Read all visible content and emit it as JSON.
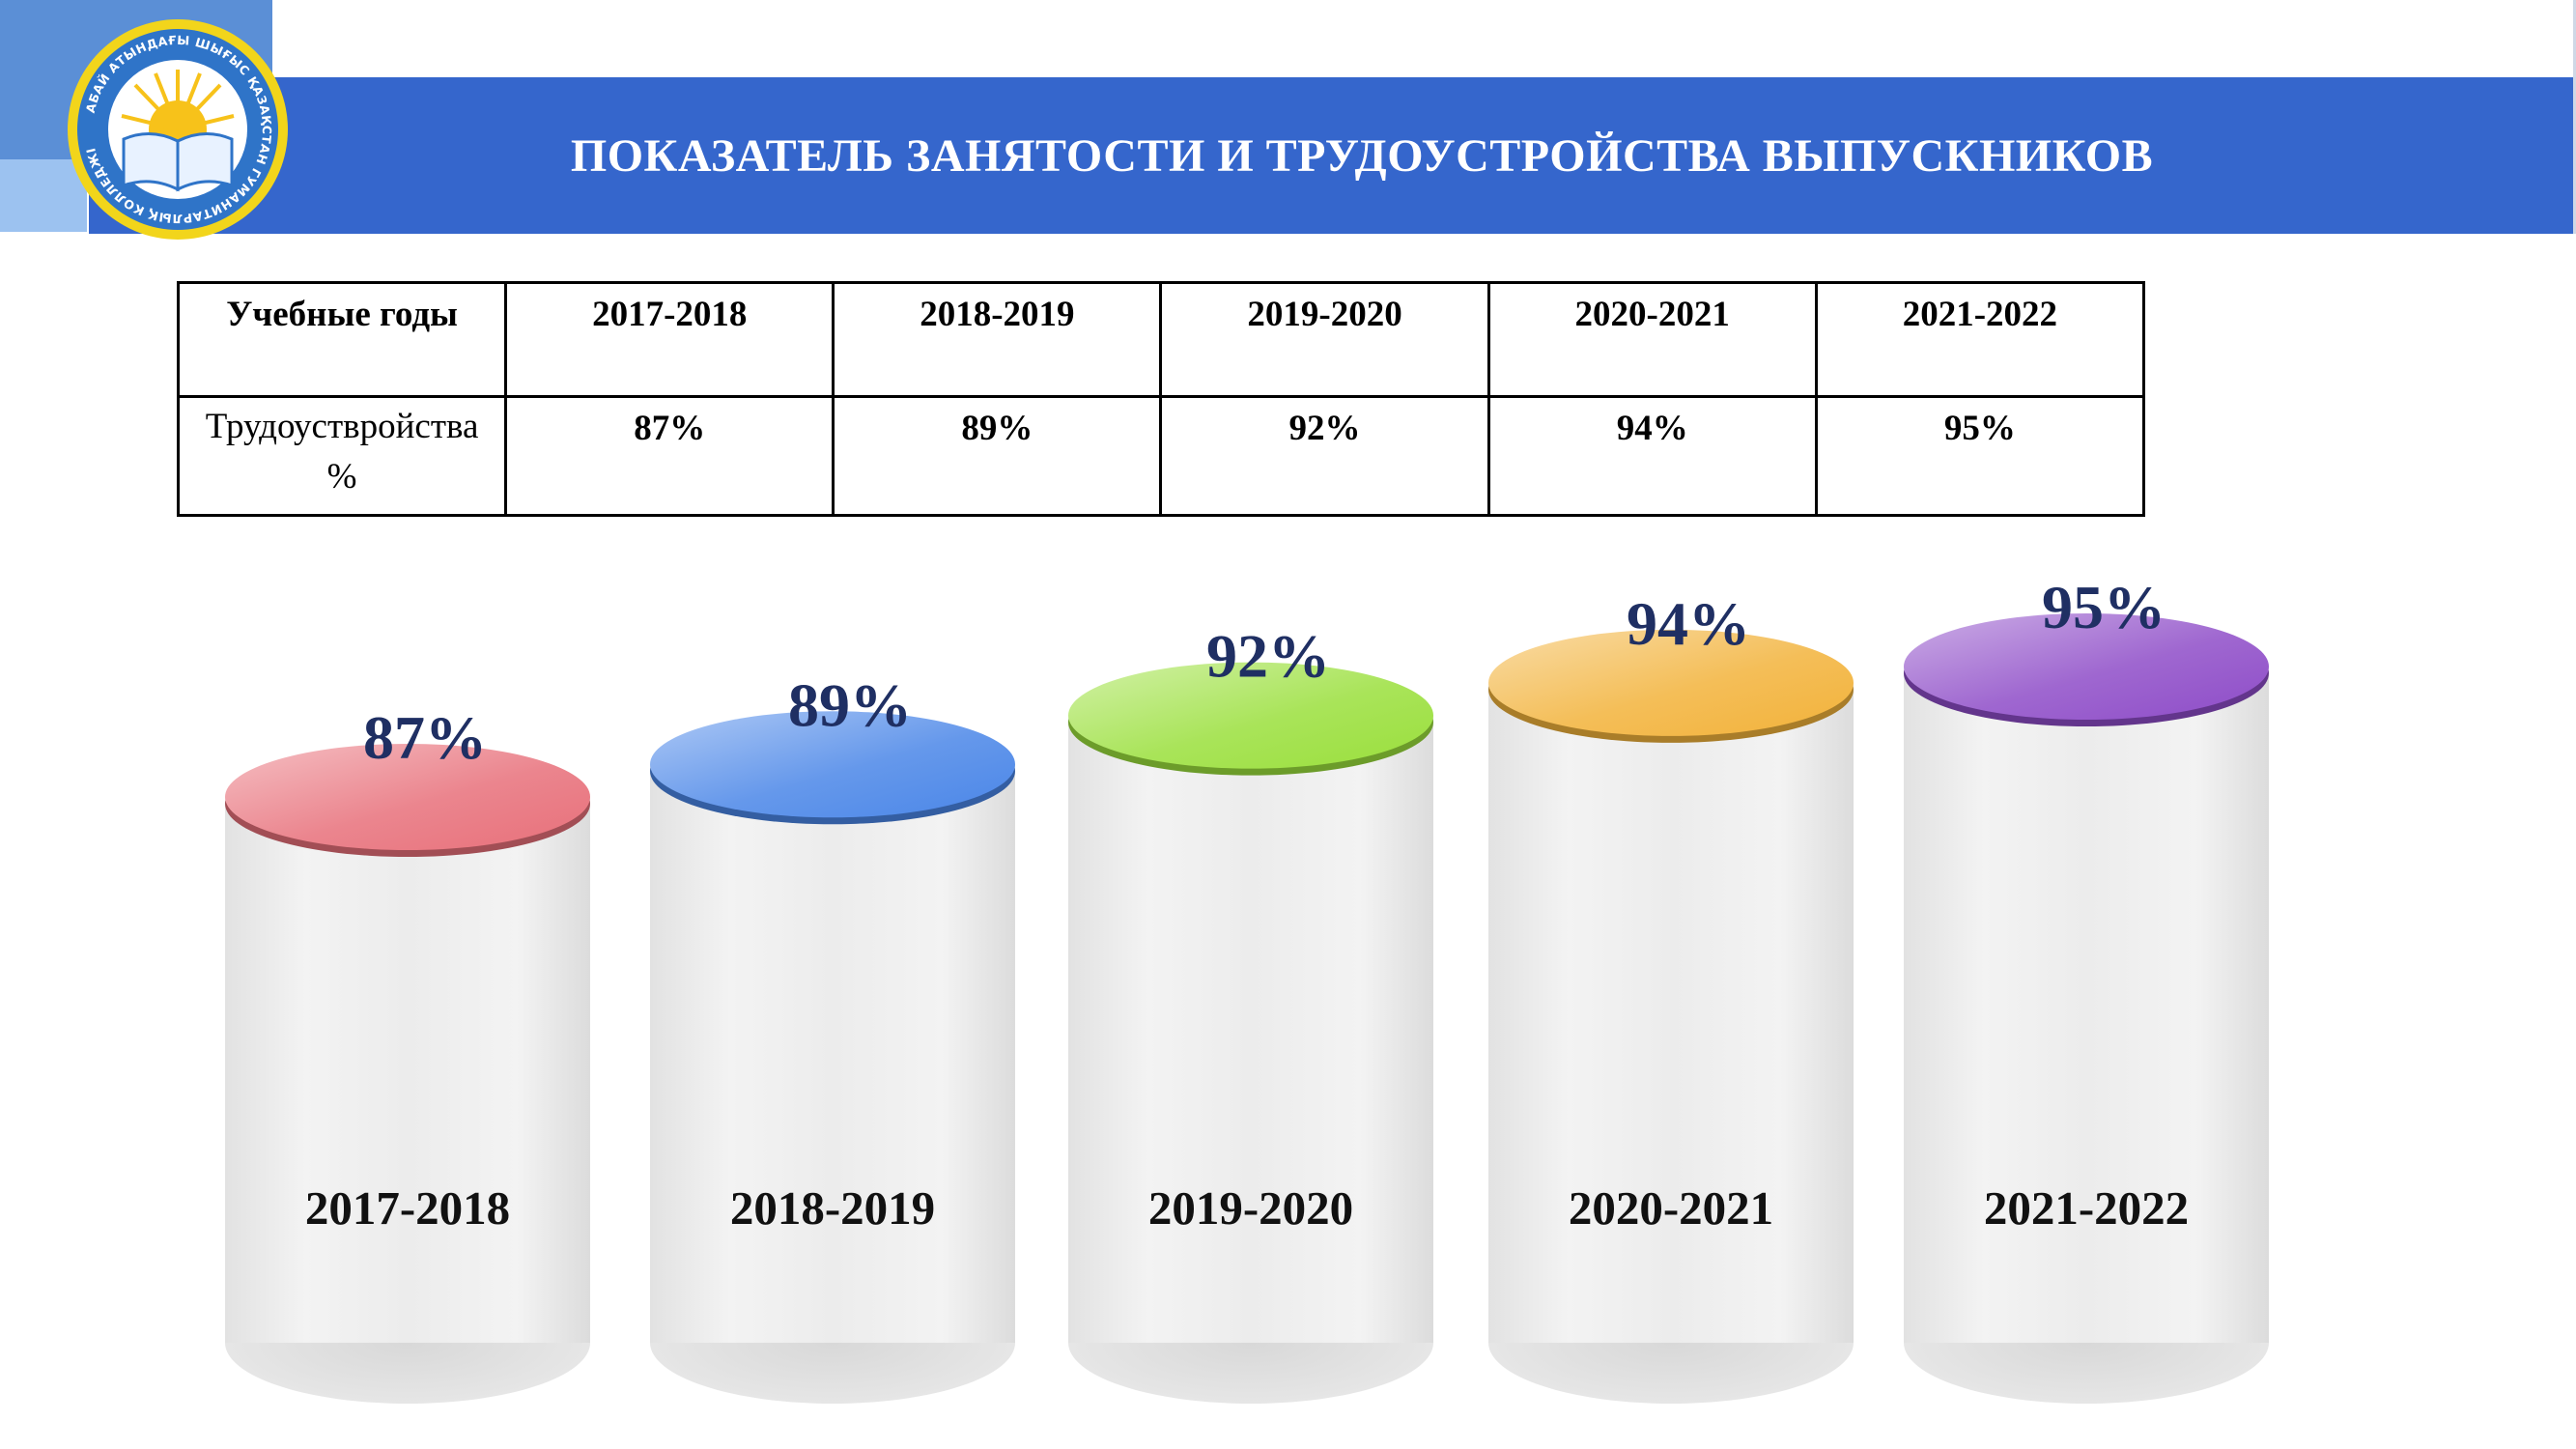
{
  "header": {
    "title": "ПОКАЗАТЕЛЬ ЗАНЯТОСТИ И ТРУДОУСТРОЙСТВА ВЫПУСКНИКОВ",
    "band_color": "#3566cc"
  },
  "logo": {
    "text": "АБАЙ АТЫНДАҒЫ ШЫҒЫС ҚАЗАҚСТАН ГУМАНИТАРЛЫҚ КОЛЛЕДЖІ",
    "icon": "open-book-sun-emblem"
  },
  "table": {
    "header_label": "Учебные годы",
    "years": [
      "2017-2018",
      "2018-2019",
      "2019-2020",
      "2020-2021",
      "2021-2022"
    ],
    "row_label_line1": "Трудоуствройства",
    "row_label_line2": "%",
    "values": [
      "87%",
      "89%",
      "92%",
      "94%",
      "95%"
    ]
  },
  "chart_data": {
    "type": "bar",
    "categories": [
      "2017-2018",
      "2018-2019",
      "2019-2020",
      "2020-2021",
      "2021-2022"
    ],
    "values": [
      87,
      89,
      92,
      94,
      95
    ],
    "value_labels": [
      "87%",
      "89%",
      "92%",
      "94%",
      "95%"
    ],
    "colors": [
      "#e8707a",
      "#4a86e8",
      "#9adf3c",
      "#f2b23a",
      "#8e4cc8"
    ],
    "title": "",
    "xlabel": "",
    "ylabel": ""
  }
}
